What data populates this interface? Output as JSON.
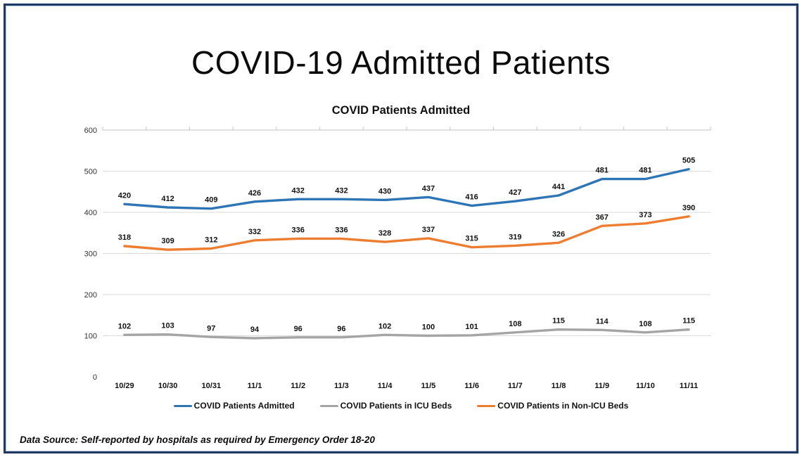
{
  "page": {
    "border_color": "#1f3864",
    "background": "#ffffff"
  },
  "title": "COVID-19 Admitted Patients",
  "footer": {
    "text": "Data Source: Self-reported by hospitals as required by Emergency Order 18-20"
  },
  "chart_data": {
    "type": "line",
    "title": "COVID Patients Admitted",
    "categories": [
      "10/29",
      "10/30",
      "10/31",
      "11/1",
      "11/2",
      "11/3",
      "11/4",
      "11/5",
      "11/6",
      "11/7",
      "11/8",
      "11/9",
      "11/10",
      "11/11"
    ],
    "series": [
      {
        "name": "COVID Patients Admitted",
        "color": "#2e75b6",
        "values": [
          420,
          412,
          409,
          426,
          432,
          432,
          430,
          437,
          416,
          427,
          441,
          481,
          481,
          505
        ]
      },
      {
        "name": "COVID Patients in ICU Beds",
        "color": "#a5a5a5",
        "values": [
          102,
          103,
          97,
          94,
          96,
          96,
          102,
          100,
          101,
          108,
          115,
          114,
          108,
          115
        ]
      },
      {
        "name": "COVID Patients in Non-ICU Beds",
        "color": "#ed7d31",
        "values": [
          318,
          309,
          312,
          332,
          336,
          336,
          328,
          337,
          315,
          319,
          326,
          367,
          373,
          390
        ]
      }
    ],
    "ylim": [
      0,
      600
    ],
    "yticks": [
      0,
      100,
      200,
      300,
      400,
      500,
      600
    ],
    "grid": true,
    "data_labels": true,
    "legend_position": "bottom",
    "gridline_color": "#d9d9d9",
    "axis_line_color": "#c6c6c6"
  }
}
